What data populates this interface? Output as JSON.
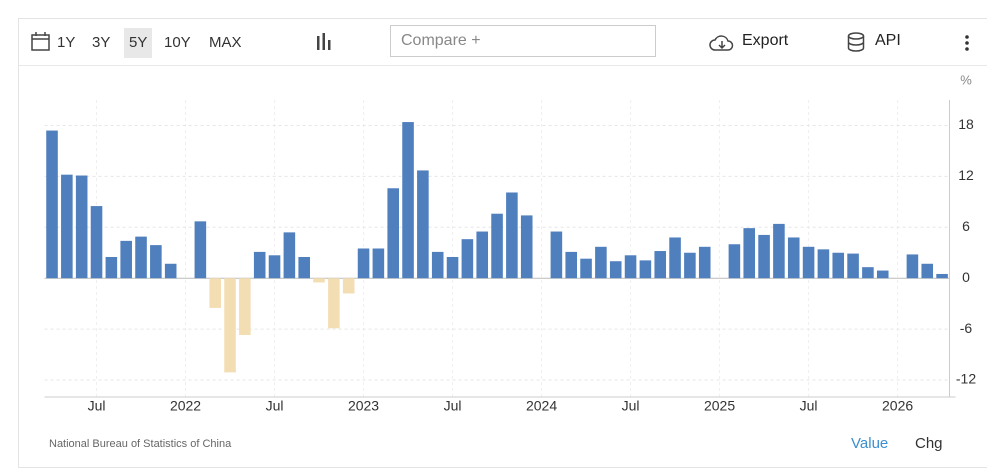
{
  "toolbar": {
    "ranges": [
      "1Y",
      "3Y",
      "5Y",
      "10Y",
      "MAX"
    ],
    "selected_range": "5Y",
    "compare_placeholder": "Compare +",
    "export": "Export",
    "api": "API"
  },
  "chart_data": {
    "type": "bar",
    "unit": "%",
    "categories": [
      null,
      null,
      null,
      "Jul",
      null,
      null,
      null,
      null,
      null,
      "2022",
      null,
      null,
      null,
      null,
      null,
      "Jul",
      null,
      null,
      null,
      null,
      null,
      "2023",
      null,
      null,
      null,
      null,
      null,
      "Jul",
      null,
      null,
      null,
      null,
      null,
      "2024",
      null,
      null,
      null,
      null,
      null,
      "Jul",
      null,
      null,
      null,
      null,
      null,
      "2025",
      null,
      null,
      null,
      null,
      null,
      "Jul",
      null,
      null,
      null,
      null,
      null,
      "2026",
      null,
      null,
      null
    ],
    "values": [
      17.4,
      12.2,
      12.1,
      8.5,
      2.5,
      4.4,
      4.9,
      3.9,
      1.7,
      null,
      6.7,
      -3.5,
      -11.1,
      -6.7,
      3.1,
      2.7,
      5.4,
      2.5,
      -0.5,
      -5.9,
      -1.8,
      3.5,
      3.5,
      10.6,
      18.4,
      12.7,
      3.1,
      2.5,
      4.6,
      5.5,
      7.6,
      10.1,
      7.4,
      null,
      5.5,
      3.1,
      2.3,
      3.7,
      2.0,
      2.7,
      2.1,
      3.2,
      4.8,
      3.0,
      3.7,
      null,
      4.0,
      5.9,
      5.1,
      6.4,
      4.8,
      3.7,
      3.4,
      3.0,
      2.9,
      1.3,
      0.9,
      null,
      2.8,
      1.7,
      0.5
    ],
    "positive_color": "#4f7fbd",
    "negative_color": "#f3deb4",
    "ylim": [
      -14,
      21
    ],
    "yticks": [
      18,
      12,
      6,
      0,
      -6,
      -12
    ],
    "grid": true
  },
  "footer": {
    "source": "National Bureau of Statistics of China",
    "tabs": [
      "Value",
      "Chg"
    ],
    "active_tab": "Value"
  }
}
